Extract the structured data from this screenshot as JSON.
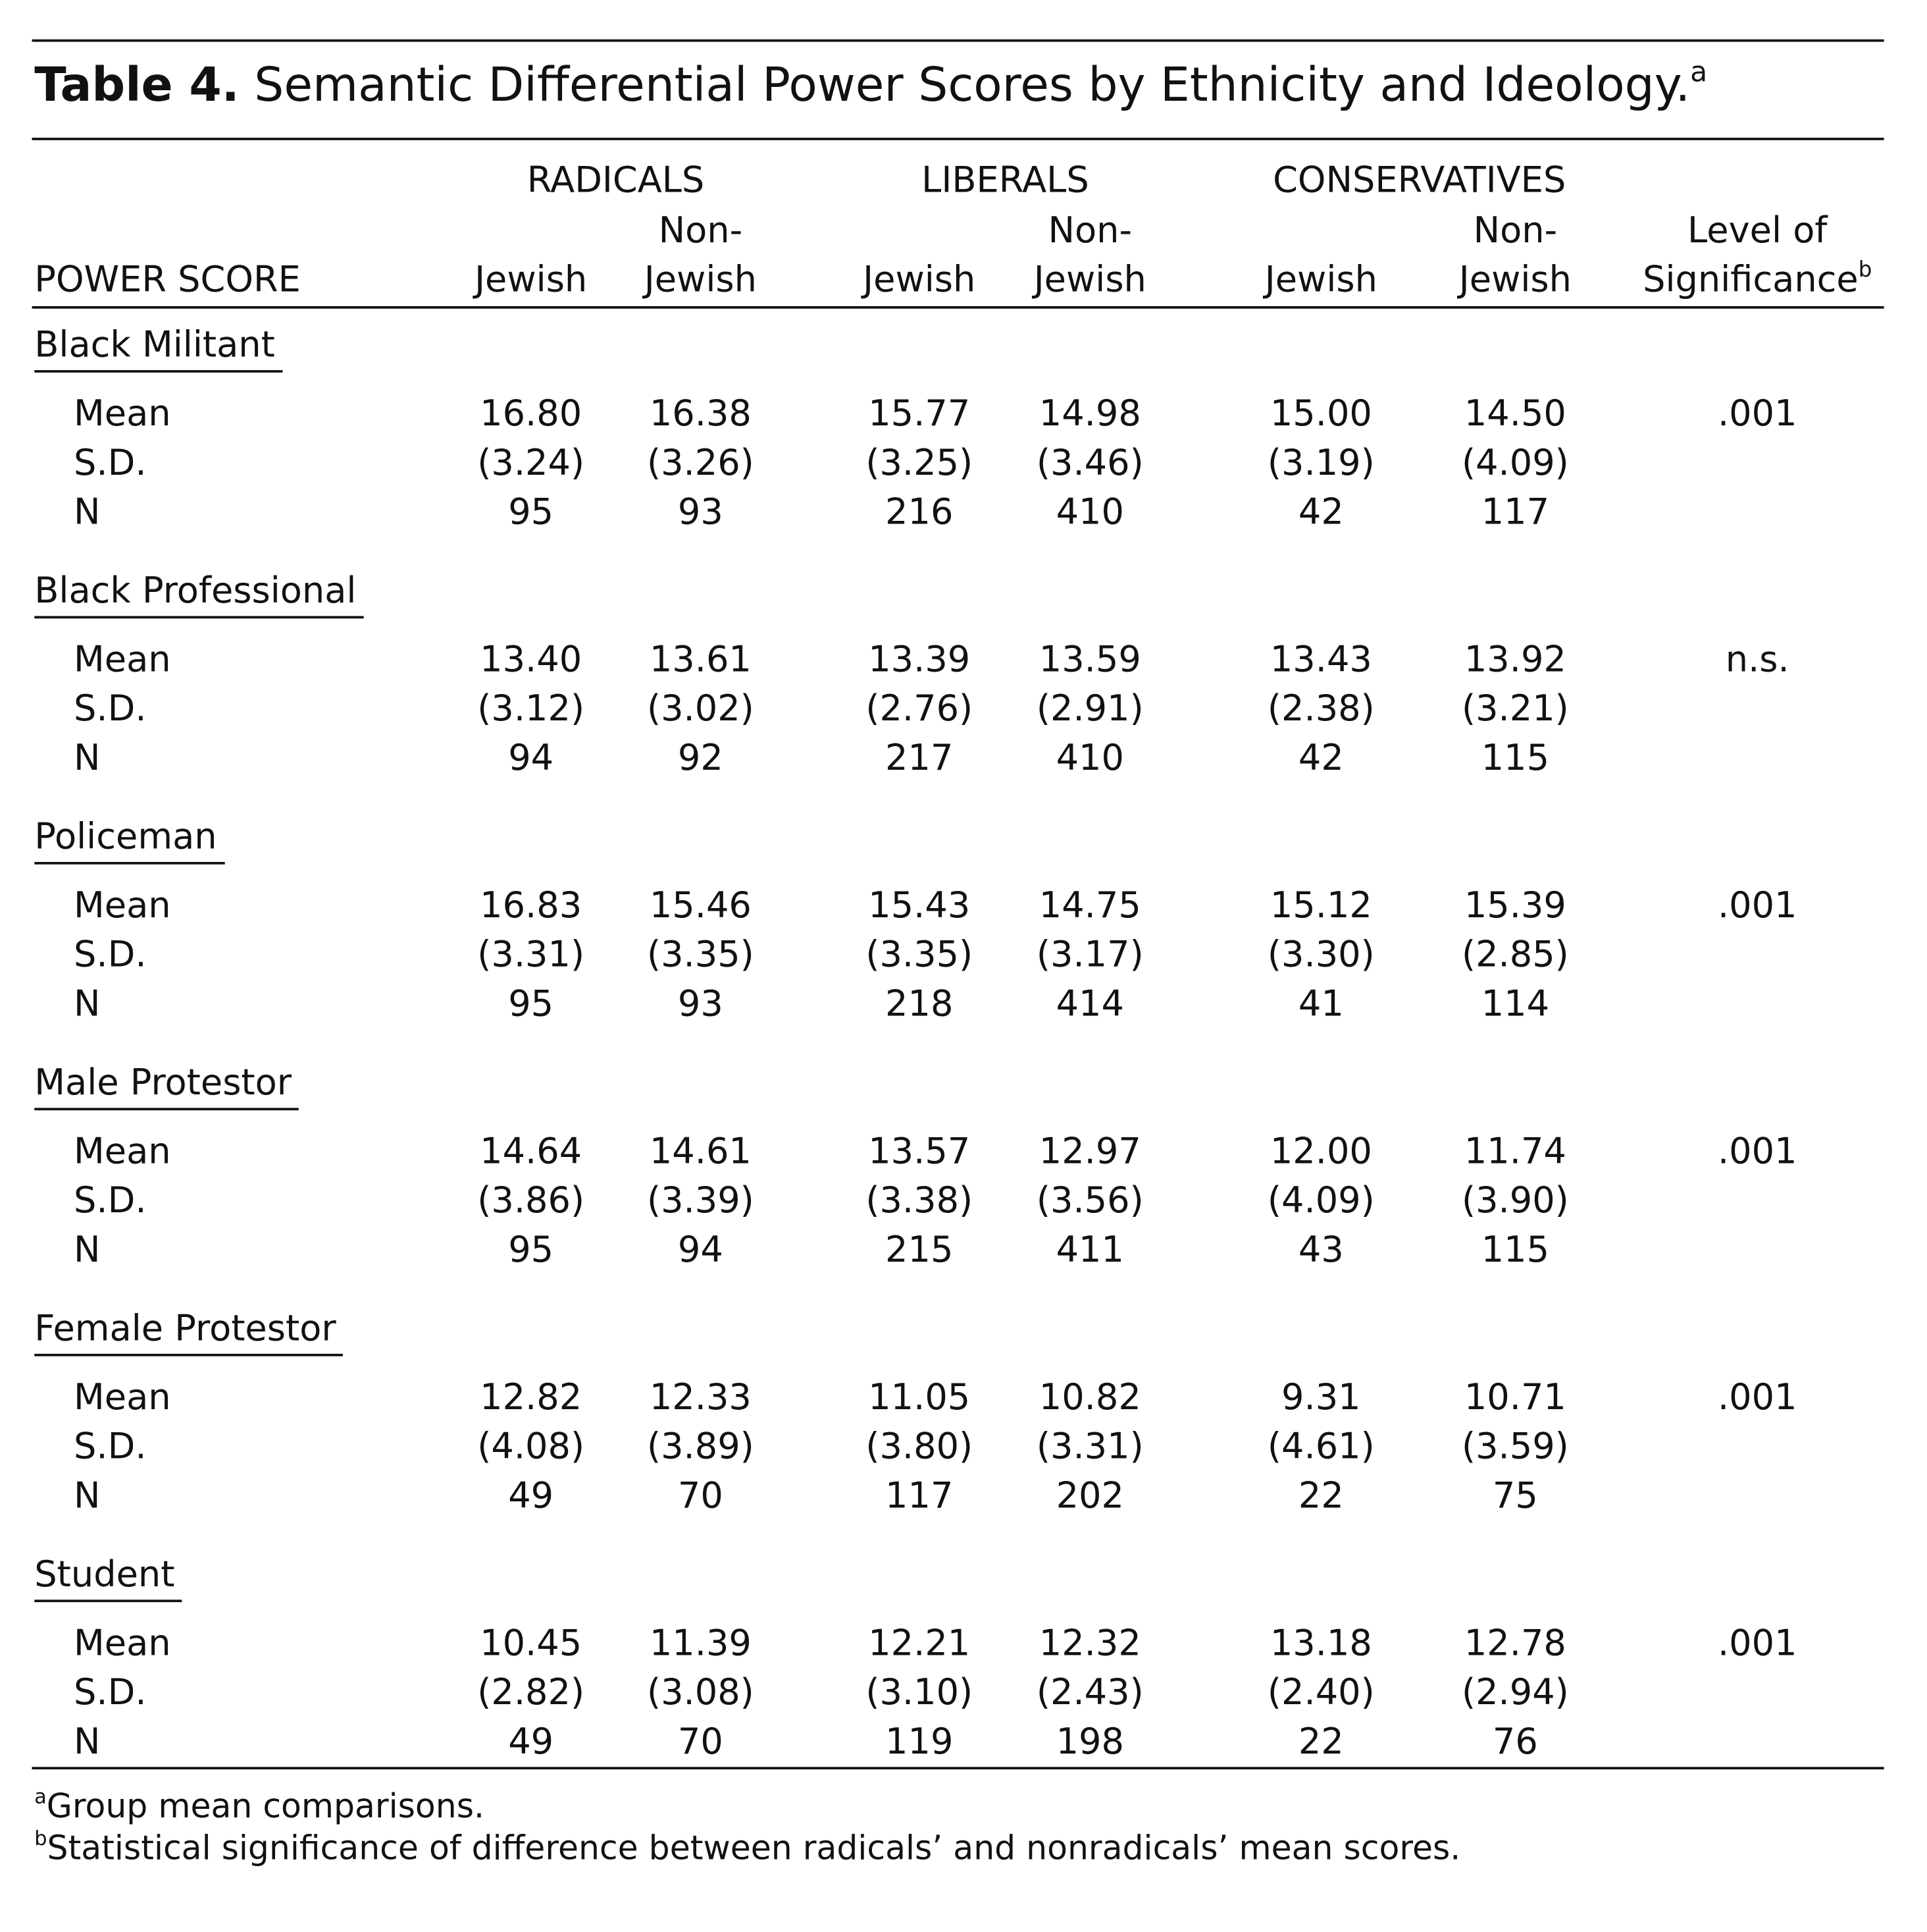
{
  "table": {
    "title_label": "Table 4.",
    "title": "Semantic Differential Power Scores by Ethnicity and Ideology.",
    "title_note": "a",
    "group_headers": [
      "RADICALS",
      "LIBERALS",
      "CONSERVATIVES"
    ],
    "columns": [
      [
        "POWER SCORE"
      ],
      [
        "Jewish"
      ],
      [
        "Non-",
        "Jewish"
      ],
      [
        "Jewish"
      ],
      [
        "Non-",
        "Jewish"
      ],
      [
        "Jewish"
      ],
      [
        "Non-",
        "Jewish"
      ],
      [
        "Level of",
        "Significance"
      ]
    ],
    "significance_note": "b",
    "sections": [
      {
        "name": "Black Militant",
        "rows": [
          [
            "Mean",
            "16.80",
            "16.38",
            "15.77",
            "14.98",
            "15.00",
            "14.50",
            ".001"
          ],
          [
            "S.D.",
            "(3.24)",
            "(3.26)",
            "(3.25)",
            "(3.46)",
            "(3.19)",
            "(4.09)"
          ],
          [
            "N",
            "95",
            "93",
            "216",
            "410",
            "42",
            "117"
          ]
        ]
      },
      {
        "name": "Black Professional",
        "rows": [
          [
            "Mean",
            "13.40",
            "13.61",
            "13.39",
            "13.59",
            "13.43",
            "13.92",
            "n.s."
          ],
          [
            "S.D.",
            "(3.12)",
            "(3.02)",
            "(2.76)",
            "(2.91)",
            "(2.38)",
            "(3.21)"
          ],
          [
            "N",
            "94",
            "92",
            "217",
            "410",
            "42",
            "115"
          ]
        ]
      },
      {
        "name": "Policeman",
        "rows": [
          [
            "Mean",
            "16.83",
            "15.46",
            "15.43",
            "14.75",
            "15.12",
            "15.39",
            ".001"
          ],
          [
            "S.D.",
            "(3.31)",
            "(3.35)",
            "(3.35)",
            "(3.17)",
            "(3.30)",
            "(2.85)"
          ],
          [
            "N",
            "95",
            "93",
            "218",
            "414",
            "41",
            "114"
          ]
        ]
      },
      {
        "name": "Male Protestor",
        "rows": [
          [
            "Mean",
            "14.64",
            "14.61",
            "13.57",
            "12.97",
            "12.00",
            "11.74",
            ".001"
          ],
          [
            "S.D.",
            "(3.86)",
            "(3.39)",
            "(3.38)",
            "(3.56)",
            "(4.09)",
            "(3.90)"
          ],
          [
            "N",
            "95",
            "94",
            "215",
            "411",
            "43",
            "115"
          ]
        ]
      },
      {
        "name": "Female Protestor",
        "rows": [
          [
            "Mean",
            "12.82",
            "12.33",
            "11.05",
            "10.82",
            "9.31",
            "10.71",
            ".001"
          ],
          [
            "S.D.",
            "(4.08)",
            "(3.89)",
            "(3.80)",
            "(3.31)",
            "(4.61)",
            "(3.59)"
          ],
          [
            "N",
            "49",
            "70",
            "117",
            "202",
            "22",
            "75"
          ]
        ]
      },
      {
        "name": "Student",
        "rows": [
          [
            "Mean",
            "10.45",
            "11.39",
            "12.21",
            "12.32",
            "13.18",
            "12.78",
            ".001"
          ],
          [
            "S.D.",
            "(2.82)",
            "(3.08)",
            "(3.10)",
            "(2.43)",
            "(2.40)",
            "(2.94)"
          ],
          [
            "N",
            "49",
            "70",
            "119",
            "198",
            "22",
            "76"
          ]
        ]
      }
    ],
    "footnotes": [
      {
        "mark": "a",
        "text": "Group mean comparisons."
      },
      {
        "mark": "b",
        "text": "Statistical significance of difference between radicals’ and nonradicals’ mean scores."
      }
    ]
  }
}
